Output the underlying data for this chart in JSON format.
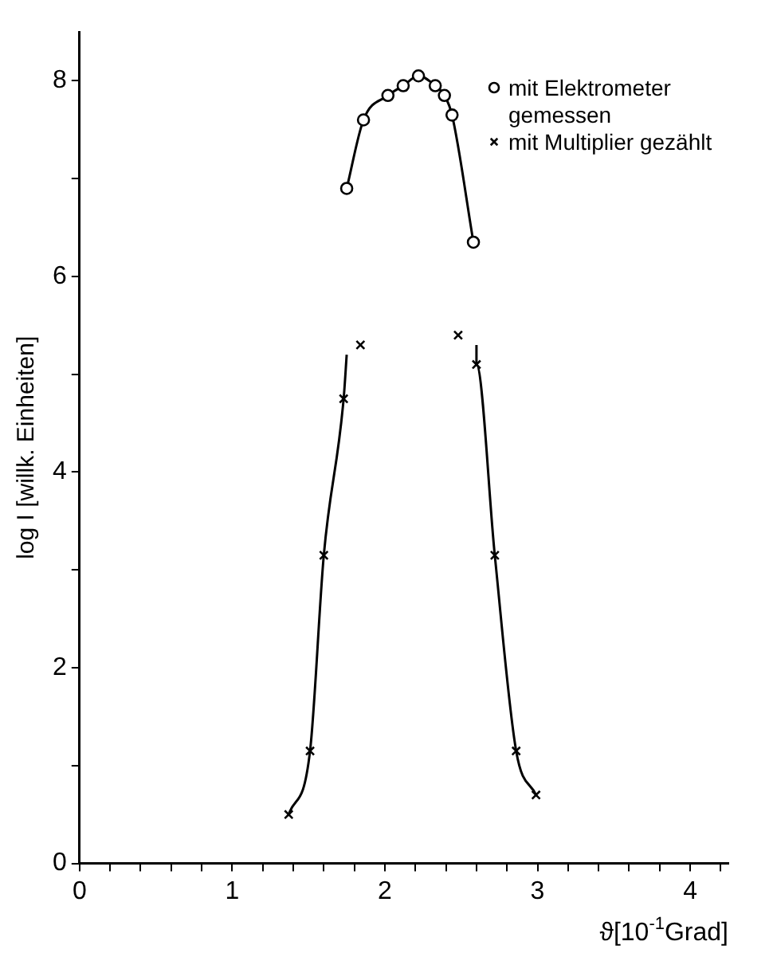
{
  "chart_data": {
    "type": "scatter",
    "xlabel": "ϑ[10$^{-1}$Grad]",
    "ylabel": "log I [willk. Einheiten]",
    "xlim": [
      0,
      4.25
    ],
    "ylim": [
      0,
      8.5
    ],
    "xticks": [
      0,
      {
        "value": 0.2,
        "label": null
      },
      {
        "value": 0.4,
        "label": null
      },
      {
        "value": 0.6,
        "label": null
      },
      {
        "value": 0.8,
        "label": null
      },
      1,
      {
        "value": 1.2,
        "label": null
      },
      {
        "value": 1.4,
        "label": null
      },
      {
        "value": 1.6,
        "label": null
      },
      {
        "value": 1.8,
        "label": null
      },
      2,
      {
        "value": 2.2,
        "label": null
      },
      {
        "value": 2.4,
        "label": null
      },
      {
        "value": 2.6,
        "label": null
      },
      {
        "value": 2.8,
        "label": null
      },
      3,
      {
        "value": 3.2,
        "label": null
      },
      {
        "value": 3.4,
        "label": null
      },
      {
        "value": 3.6,
        "label": null
      },
      {
        "value": 3.8,
        "label": null
      },
      4,
      {
        "value": 4.2,
        "label": null
      }
    ],
    "yticks": [
      0,
      {
        "value": 1,
        "label": null
      },
      2,
      {
        "value": 3,
        "label": null
      },
      4,
      {
        "value": 5,
        "label": null
      },
      6,
      {
        "value": 7,
        "label": null
      },
      8
    ],
    "grid": false,
    "legend": "top right",
    "line_style": "solid",
    "series": [
      {
        "name": "mit Elektrometer gemessen",
        "type": "line",
        "marker": "circle",
        "color": "#000000",
        "x": [
          1.75,
          1.86,
          2.02,
          2.12,
          2.22,
          2.33,
          2.39,
          2.44,
          2.58
        ],
        "values": [
          6.9,
          7.6,
          7.85,
          7.95,
          8.05,
          7.95,
          7.85,
          7.65,
          6.35
        ]
      },
      {
        "name": "mit Multiplier gezählt",
        "type": "scatter",
        "marker": "cross",
        "color": "#000000",
        "x": [
          1.37,
          1.51,
          1.6,
          1.73,
          1.84,
          2.48,
          2.6,
          2.72,
          2.86,
          2.99
        ],
        "values": [
          0.5,
          1.15,
          3.15,
          4.75,
          5.3,
          5.4,
          5.1,
          3.15,
          1.15,
          0.7
        ]
      },
      {
        "type": "line",
        "marker": "none",
        "color": "#000000",
        "x": [
          1.37,
          1.51,
          1.6,
          1.73,
          1.75
        ],
        "values": [
          0.5,
          1.15,
          3.15,
          4.75,
          5.2
        ]
      },
      {
        "type": "line",
        "marker": "none",
        "color": "#000000",
        "x": [
          2.6,
          2.6,
          2.72,
          2.86,
          2.99
        ],
        "values": [
          5.3,
          5.1,
          3.15,
          1.15,
          0.7
        ]
      }
    ]
  }
}
